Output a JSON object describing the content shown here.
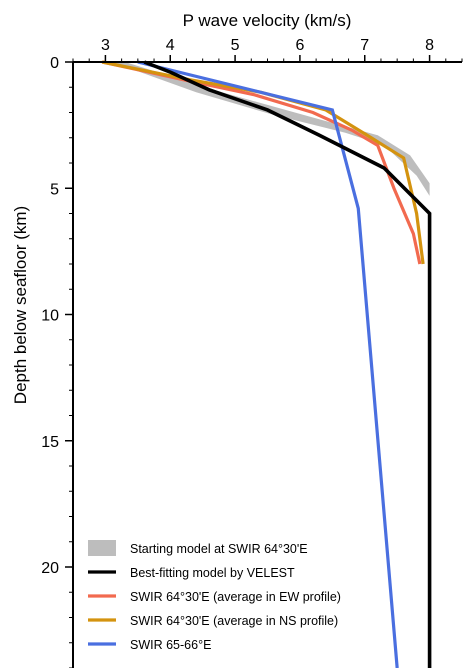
{
  "chart_data": {
    "type": "line",
    "xlabel": "P wave velocity (km/s)",
    "ylabel": "Depth below seafloor (km)",
    "xlim": [
      2.5,
      8.5
    ],
    "ylim": [
      0,
      24
    ],
    "x_ticks": [
      3,
      4,
      5,
      6,
      7,
      8
    ],
    "y_ticks": [
      0,
      5,
      10,
      15,
      20
    ],
    "x_axis_position": "top",
    "y_axis_inverted": true,
    "grid": false,
    "legend_position": "bottom-left",
    "band": {
      "name": "Starting model at SWIR 64°30'E",
      "color": "#bdbdbd",
      "left": [
        [
          3.1,
          0.0
        ],
        [
          4.4,
          1.2
        ],
        [
          5.6,
          2.1
        ],
        [
          6.7,
          2.8
        ],
        [
          7.3,
          3.3
        ],
        [
          7.8,
          4.5
        ],
        [
          8.0,
          5.3
        ]
      ],
      "right": [
        [
          3.3,
          0.0
        ],
        [
          4.8,
          1.2
        ],
        [
          6.2,
          2.2
        ],
        [
          7.2,
          2.9
        ],
        [
          7.7,
          3.7
        ],
        [
          8.0,
          4.8
        ],
        [
          8.0,
          5.5
        ]
      ]
    },
    "series": [
      {
        "name": "Best-fitting model by VELEST",
        "color": "#000000",
        "points": [
          [
            3.6,
            0.0
          ],
          [
            4.0,
            0.4
          ],
          [
            4.6,
            1.1
          ],
          [
            5.5,
            1.9
          ],
          [
            6.3,
            2.9
          ],
          [
            7.3,
            4.2
          ],
          [
            8.0,
            6.0
          ],
          [
            8.0,
            24.0
          ]
        ]
      },
      {
        "name": "SWIR 64°30'E (average in EW profile)",
        "color": "#f26a4f",
        "points": [
          [
            2.95,
            0.0
          ],
          [
            4.2,
            0.7
          ],
          [
            5.3,
            1.3
          ],
          [
            6.2,
            2.0
          ],
          [
            6.8,
            2.7
          ],
          [
            7.2,
            3.3
          ],
          [
            7.45,
            5.0
          ],
          [
            7.75,
            6.8
          ],
          [
            7.85,
            8.0
          ]
        ]
      },
      {
        "name": "SWIR 64°30'E (average in NS profile)",
        "color": "#d4930f",
        "points": [
          [
            2.95,
            0.0
          ],
          [
            4.3,
            0.7
          ],
          [
            5.4,
            1.2
          ],
          [
            6.4,
            1.9
          ],
          [
            7.1,
            3.0
          ],
          [
            7.6,
            3.8
          ],
          [
            7.8,
            6.0
          ],
          [
            7.9,
            8.0
          ]
        ]
      },
      {
        "name": "SWIR 65-66°E",
        "color": "#4a6fe0",
        "points": [
          [
            3.5,
            0.0
          ],
          [
            6.5,
            1.9
          ],
          [
            6.9,
            5.8
          ],
          [
            7.5,
            24.0
          ]
        ]
      }
    ]
  }
}
